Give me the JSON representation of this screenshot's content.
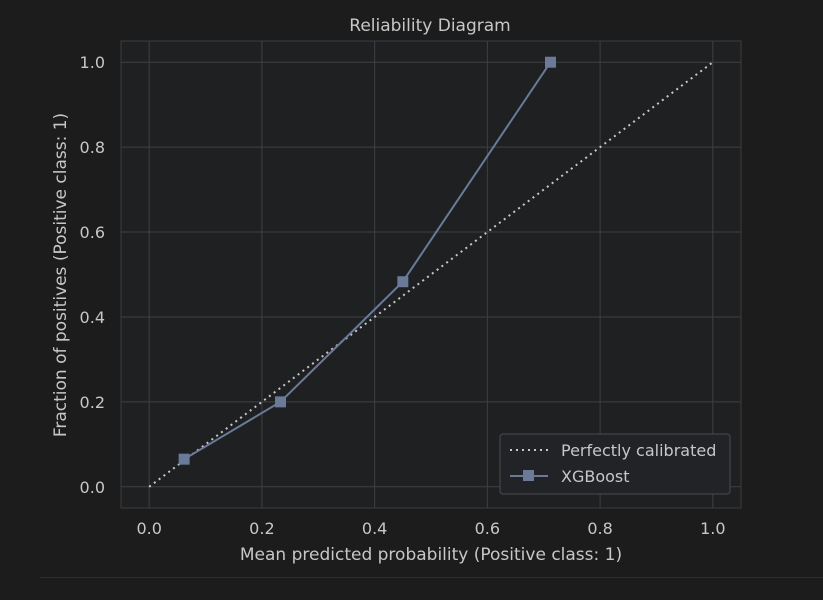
{
  "chart_data": {
    "type": "line",
    "title": "Reliability Diagram",
    "xlabel": "Mean predicted probability (Positive class: 1)",
    "ylabel": "Fraction of positives (Positive class: 1)",
    "xlim": [
      -0.05,
      1.05
    ],
    "ylim": [
      -0.05,
      1.05
    ],
    "grid": true,
    "legend_position": "lower-right",
    "x_ticks": [
      "0.0",
      "0.2",
      "0.4",
      "0.6",
      "0.8",
      "1.0"
    ],
    "y_ticks": [
      "0.0",
      "0.2",
      "0.4",
      "0.6",
      "0.8",
      "1.0"
    ],
    "x_tick_values": [
      0.0,
      0.2,
      0.4,
      0.6,
      0.8,
      1.0
    ],
    "y_tick_values": [
      0.0,
      0.2,
      0.4,
      0.6,
      0.8,
      1.0
    ],
    "series": [
      {
        "name": "Perfectly calibrated",
        "style": "dotted",
        "marker": "none",
        "color": "#c8c8c8",
        "x": [
          0.0,
          1.0
        ],
        "y": [
          0.0,
          1.0
        ]
      },
      {
        "name": "XGBoost",
        "style": "solid",
        "marker": "square",
        "color": "#6b7a99",
        "x": [
          0.062,
          0.233,
          0.45,
          0.712
        ],
        "y": [
          0.065,
          0.2,
          0.483,
          1.0
        ]
      }
    ]
  },
  "colors": {
    "background": "#1c1c1d",
    "axes_background": "#1f2022",
    "grid": "#3f4043",
    "text": "#c7c7c7"
  }
}
